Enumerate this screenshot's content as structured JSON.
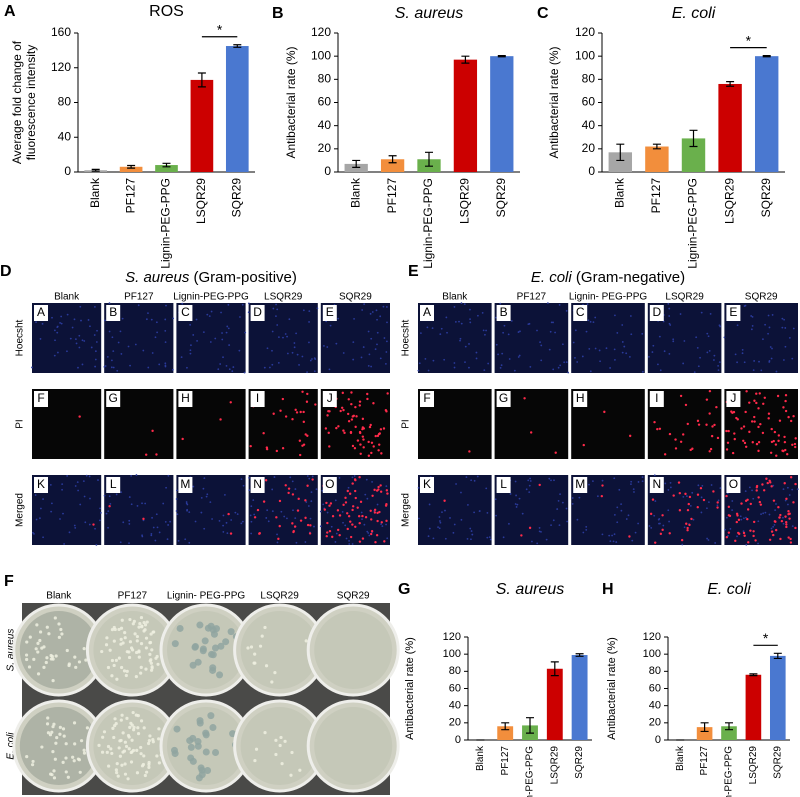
{
  "chart_data": [
    {
      "type": "bar",
      "panel": "A",
      "title": "ROS",
      "ylabel": [
        "Average fold change of",
        "fluorescence intensity"
      ],
      "categories": [
        "Blank",
        "PF127",
        "Lignin-PEG-PPG",
        "LSQR29",
        "SQR29"
      ],
      "values": [
        2,
        6,
        8,
        106,
        145
      ],
      "errors": [
        1,
        1.5,
        2,
        8,
        1.5
      ],
      "colors": [
        "#a6a6a6",
        "#f28e3c",
        "#6ab04c",
        "#cc0000",
        "#4a78d0"
      ],
      "ylim": [
        0,
        160
      ],
      "yticks": [
        0,
        40,
        80,
        120,
        160
      ],
      "significance": {
        "between": [
          "LSQR29",
          "SQR29"
        ],
        "label": "*"
      }
    },
    {
      "type": "bar",
      "panel": "B",
      "title": "S. aureus",
      "title_style": "italic",
      "ylabel": [
        "Antibacterial rate (%)"
      ],
      "categories": [
        "Blank",
        "PF127",
        "Lignin-PEG-PPG",
        "LSQR29",
        "SQR29"
      ],
      "values": [
        7,
        11,
        11,
        97,
        100
      ],
      "errors": [
        3,
        3,
        6,
        3,
        0.5
      ],
      "colors": [
        "#a6a6a6",
        "#f28e3c",
        "#6ab04c",
        "#cc0000",
        "#4a78d0"
      ],
      "ylim": [
        0,
        120
      ],
      "yticks": [
        0,
        20,
        40,
        60,
        80,
        100,
        120
      ]
    },
    {
      "type": "bar",
      "panel": "C",
      "title": "E. coli",
      "title_style": "italic",
      "ylabel": [
        "Antibacterial rate (%)"
      ],
      "categories": [
        "Blank",
        "PF127",
        "Lignin-PEG-PPG",
        "LSQR29",
        "SQR29"
      ],
      "values": [
        17,
        22,
        29,
        76,
        100
      ],
      "errors": [
        7,
        2,
        7,
        2,
        0.5
      ],
      "colors": [
        "#a6a6a6",
        "#f28e3c",
        "#6ab04c",
        "#cc0000",
        "#4a78d0"
      ],
      "ylim": [
        0,
        120
      ],
      "yticks": [
        0,
        20,
        40,
        60,
        80,
        100,
        120
      ],
      "significance": {
        "between": [
          "LSQR29",
          "SQR29"
        ],
        "label": "*"
      }
    },
    {
      "type": "bar",
      "panel": "G",
      "title": "S. aureus",
      "title_style": "italic",
      "ylabel": [
        "Antibacterial rate (%)"
      ],
      "categories": [
        "Blank",
        "PF127",
        "Lignin-PEG-PPG",
        "LSQR29",
        "SQR29"
      ],
      "values": [
        0,
        16,
        17,
        83,
        99
      ],
      "errors": [
        0,
        4,
        9,
        8,
        1.5
      ],
      "colors": [
        "#a6a6a6",
        "#f28e3c",
        "#6ab04c",
        "#cc0000",
        "#4a78d0"
      ],
      "ylim": [
        0,
        120
      ],
      "yticks": [
        0,
        20,
        40,
        60,
        80,
        100,
        120
      ]
    },
    {
      "type": "bar",
      "panel": "H",
      "title": "E. coli",
      "title_style": "italic",
      "ylabel": [
        "Antibacterial rate (%)"
      ],
      "categories": [
        "Blank",
        "PF127",
        "Lignin-PEG-PPG",
        "LSQR29",
        "SQR29"
      ],
      "values": [
        0,
        15,
        16,
        76,
        98
      ],
      "errors": [
        0,
        5,
        4,
        1,
        3
      ],
      "colors": [
        "#a6a6a6",
        "#f28e3c",
        "#6ab04c",
        "#cc0000",
        "#4a78d0"
      ],
      "ylim": [
        0,
        120
      ],
      "yticks": [
        0,
        20,
        40,
        60,
        80,
        100,
        120
      ],
      "significance": {
        "between": [
          "LSQR29",
          "SQR29"
        ],
        "label": "*"
      }
    }
  ],
  "panels": {
    "D": {
      "letter": "D",
      "species": "S. aureus",
      "title": "(Gram-positive)",
      "columns": [
        "Blank",
        "PF127",
        "Lignin-PEG-PPG",
        "LSQR29",
        "SQR29"
      ],
      "rows": [
        "Hoecsht",
        "PI",
        "Merged"
      ],
      "tiles": [
        "A",
        "B",
        "C",
        "D",
        "E",
        "F",
        "G",
        "H",
        "I",
        "J",
        "K",
        "L",
        "M",
        "N",
        "O"
      ]
    },
    "E": {
      "letter": "E",
      "species": "E. coli",
      "title": "(Gram-negative)",
      "columns": [
        "Blank",
        "PF127",
        "Lignin- PEG-PPG",
        "LSQR29",
        "SQR29"
      ],
      "rows": [
        "Hoecsht",
        "PI",
        "Merged"
      ],
      "tiles": [
        "A",
        "B",
        "C",
        "D",
        "E",
        "F",
        "G",
        "H",
        "I",
        "J",
        "K",
        "L",
        "M",
        "N",
        "O"
      ]
    },
    "F": {
      "letter": "F",
      "columns": [
        "Blank",
        "PF127",
        "Lignin- PEG-PPG",
        "LSQR29",
        "SQR29"
      ],
      "rows": [
        "S. aureus",
        "E. coli"
      ]
    }
  }
}
